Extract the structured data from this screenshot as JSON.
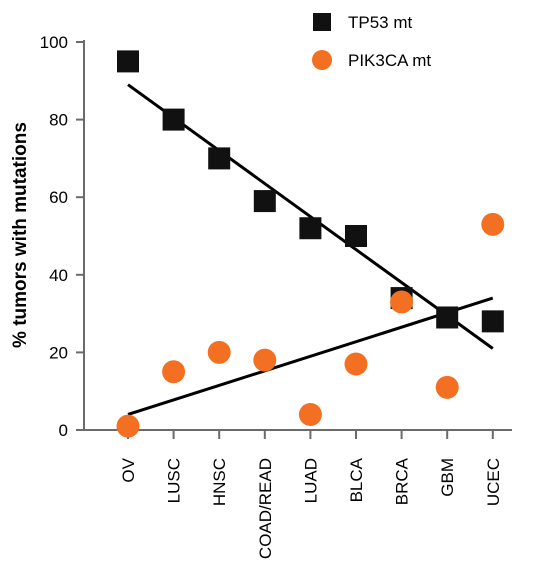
{
  "chart_data": {
    "type": "scatter",
    "title": "",
    "xlabel": "",
    "ylabel": "% tumors with mutations",
    "categories": [
      "OV",
      "LUSC",
      "HNSC",
      "COAD/READ",
      "LUAD",
      "BLCA",
      "BRCA",
      "GBM",
      "UCEC"
    ],
    "ylim": [
      0,
      100
    ],
    "yticks": [
      0,
      20,
      40,
      60,
      80,
      100
    ],
    "grid": false,
    "legend": {
      "position": "top-right"
    },
    "series": [
      {
        "name": "TP53 mt",
        "marker": "square",
        "color": "#111111",
        "values": [
          95,
          80,
          70,
          59,
          52,
          50,
          34,
          29,
          28
        ],
        "trendline": {
          "start": 89,
          "end": 21
        }
      },
      {
        "name": "PIK3CA mt",
        "marker": "circle",
        "color": "#f36f21",
        "values": [
          1,
          15,
          20,
          18,
          4,
          17,
          33,
          11,
          53
        ],
        "trendline": {
          "start": 4,
          "end": 34
        }
      }
    ]
  }
}
